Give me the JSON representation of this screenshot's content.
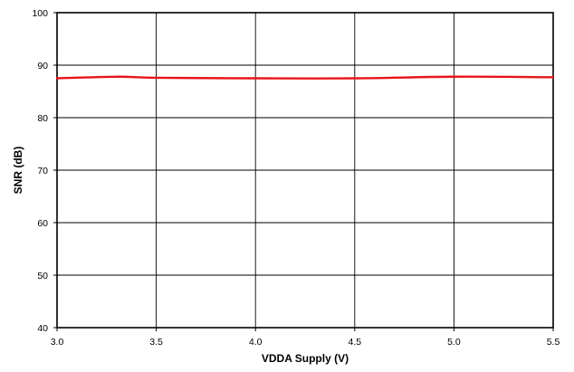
{
  "chart_data": {
    "type": "line",
    "xlabel": "VDDA Supply (V)",
    "ylabel": "SNR (dB)",
    "xlim": [
      3.0,
      5.5
    ],
    "ylim": [
      40,
      100
    ],
    "x_ticks": [
      "3.0",
      "3.5",
      "4.0",
      "4.5",
      "5.0",
      "5.5"
    ],
    "y_ticks": [
      "40",
      "50",
      "60",
      "70",
      "80",
      "90",
      "100"
    ],
    "grid": true,
    "legend": "none",
    "series": [
      {
        "color": "#e8141c",
        "x": [
          3.0,
          3.3,
          3.5,
          4.0,
          4.5,
          5.0,
          5.5
        ],
        "y": [
          87.5,
          87.8,
          87.6,
          87.5,
          87.5,
          87.8,
          87.7
        ]
      }
    ]
  }
}
